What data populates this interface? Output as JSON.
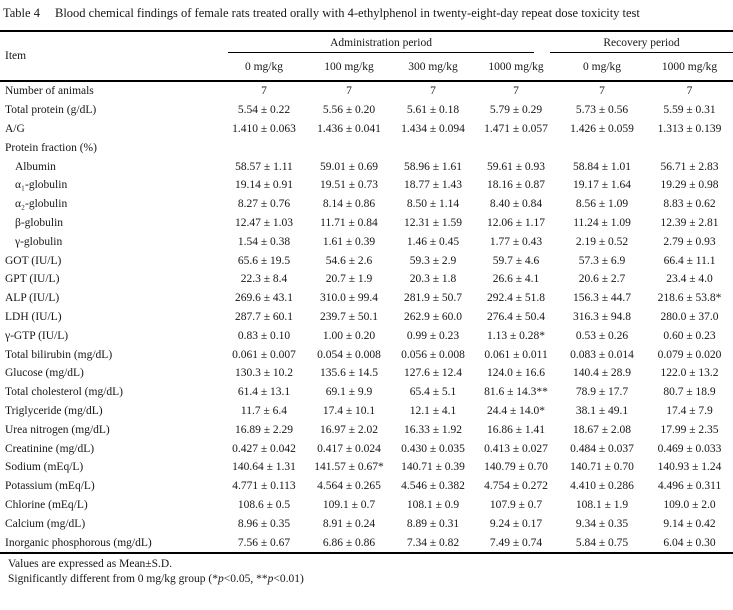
{
  "title": {
    "label": "Table 4",
    "caption": "Blood chemical findings of female rats treated orally with 4-ethylphenol in twenty-eight-day repeat dose toxicity test"
  },
  "table": {
    "item_header": "Item",
    "groups": [
      {
        "label": "Administration period",
        "cols": 4
      },
      {
        "label": "Recovery period",
        "cols": 2
      }
    ],
    "dose_headers": [
      "0 mg/kg",
      "100 mg/kg",
      "300 mg/kg",
      "1000 mg/kg",
      "0 mg/kg",
      "1000 mg/kg"
    ],
    "rows": [
      {
        "label": "Number of animals",
        "indent": false,
        "values": [
          "7",
          "7",
          "7",
          "7",
          "7",
          "7"
        ]
      },
      {
        "label": "Total protein (g/dL)",
        "indent": false,
        "values": [
          "5.54 ± 0.22",
          "5.56 ± 0.20",
          "5.61 ± 0.18",
          "5.79 ± 0.29",
          "5.73 ± 0.56",
          "5.59 ± 0.31"
        ]
      },
      {
        "label": "A/G",
        "indent": false,
        "values": [
          "1.410 ± 0.063",
          "1.436 ± 0.041",
          "1.434 ± 0.094",
          "1.471 ± 0.057",
          "1.426 ± 0.059",
          "1.313 ± 0.139"
        ]
      },
      {
        "label": "Protein fraction (%)",
        "indent": false,
        "values": [
          "",
          "",
          "",
          "",
          "",
          ""
        ]
      },
      {
        "label": "Albumin",
        "indent": true,
        "values": [
          "58.57 ± 1.11",
          "59.01 ± 0.69",
          "58.96 ± 1.61",
          "59.61 ± 0.93",
          "58.84 ± 1.01",
          "56.71 ± 2.83"
        ]
      },
      {
        "label": "α₁-globulin",
        "indent": true,
        "values": [
          "19.14 ± 0.91",
          "19.51 ± 0.73",
          "18.77 ± 1.43",
          "18.16 ± 0.87",
          "19.17 ± 1.64",
          "19.29 ± 0.98"
        ]
      },
      {
        "label": "α₂-globulin",
        "indent": true,
        "values": [
          "8.27 ± 0.76",
          "8.14 ± 0.86",
          "8.50 ± 1.14",
          "8.40 ± 0.84",
          "8.56 ± 1.09",
          "8.83 ± 0.62"
        ]
      },
      {
        "label": "β-globulin",
        "indent": true,
        "values": [
          "12.47 ± 1.03",
          "11.71 ± 0.84",
          "12.31 ± 1.59",
          "12.06 ± 1.17",
          "11.24 ± 1.09",
          "12.39 ± 2.81"
        ]
      },
      {
        "label": "γ-globulin",
        "indent": true,
        "values": [
          "1.54 ± 0.38",
          "1.61 ± 0.39",
          "1.46 ± 0.45",
          "1.77 ± 0.43",
          "2.19 ± 0.52",
          "2.79 ± 0.93"
        ]
      },
      {
        "label": "GOT (IU/L)",
        "indent": false,
        "values": [
          "65.6 ± 19.5",
          "54.6 ± 2.6",
          "59.3 ± 2.9",
          "59.7 ± 4.6",
          "57.3 ± 6.9",
          "66.4 ± 11.1"
        ]
      },
      {
        "label": "GPT (IU/L)",
        "indent": false,
        "values": [
          "22.3 ± 8.4",
          "20.7 ± 1.9",
          "20.3 ± 1.8",
          "26.6 ± 4.1",
          "20.6 ± 2.7",
          "23.4 ± 4.0"
        ]
      },
      {
        "label": "ALP (IU/L)",
        "indent": false,
        "values": [
          "269.6 ± 43.1",
          "310.0 ± 99.4",
          "281.9 ± 50.7",
          "292.4 ± 51.8",
          "156.3 ± 44.7",
          "218.6 ± 53.8*"
        ]
      },
      {
        "label": "LDH (IU/L)",
        "indent": false,
        "values": [
          "287.7 ± 60.1",
          "239.7 ± 50.1",
          "262.9 ± 60.0",
          "276.4 ± 50.4",
          "316.3 ± 94.8",
          "280.0 ± 37.0"
        ]
      },
      {
        "label": "γ-GTP (IU/L)",
        "indent": false,
        "values": [
          "0.83 ± 0.10",
          "1.00 ± 0.20",
          "0.99 ± 0.23",
          "1.13 ± 0.28*",
          "0.53 ± 0.26",
          "0.60 ± 0.23"
        ]
      },
      {
        "label": "Total bilirubin (mg/dL)",
        "indent": false,
        "values": [
          "0.061 ± 0.007",
          "0.054 ± 0.008",
          "0.056 ± 0.008",
          "0.061 ± 0.011",
          "0.083 ± 0.014",
          "0.079 ± 0.020"
        ]
      },
      {
        "label": "Glucose (mg/dL)",
        "indent": false,
        "values": [
          "130.3 ± 10.2",
          "135.6 ± 14.5",
          "127.6 ± 12.4",
          "124.0 ± 16.6",
          "140.4 ± 28.9",
          "122.0 ± 13.2"
        ]
      },
      {
        "label": "Total cholesterol (mg/dL)",
        "indent": false,
        "values": [
          "61.4 ± 13.1",
          "69.1 ± 9.9",
          "65.4 ± 5.1",
          "81.6 ± 14.3**",
          "78.9 ± 17.7",
          "80.7 ± 18.9"
        ]
      },
      {
        "label": "Triglyceride (mg/dL)",
        "indent": false,
        "values": [
          "11.7 ± 6.4",
          "17.4 ± 10.1",
          "12.1 ± 4.1",
          "24.4 ± 14.0*",
          "38.1 ± 49.1",
          "17.4 ± 7.9"
        ]
      },
      {
        "label": "Urea nitrogen (mg/dL)",
        "indent": false,
        "values": [
          "16.89 ± 2.29",
          "16.97 ± 2.02",
          "16.33 ± 1.92",
          "16.86 ± 1.41",
          "18.67 ± 2.08",
          "17.99 ± 2.35"
        ]
      },
      {
        "label": "Creatinine (mg/dL)",
        "indent": false,
        "values": [
          "0.427 ± 0.042",
          "0.417 ± 0.024",
          "0.430 ± 0.035",
          "0.413 ± 0.027",
          "0.484 ± 0.037",
          "0.469 ± 0.033"
        ]
      },
      {
        "label": "Sodium (mEq/L)",
        "indent": false,
        "values": [
          "140.64 ± 1.31",
          "141.57 ± 0.67*",
          "140.71 ± 0.39",
          "140.79 ± 0.70",
          "140.71 ± 0.70",
          "140.93 ± 1.24"
        ]
      },
      {
        "label": "Potassium (mEq/L)",
        "indent": false,
        "values": [
          "4.771 ± 0.113",
          "4.564 ± 0.265",
          "4.546 ± 0.382",
          "4.754 ± 0.272",
          "4.410 ± 0.286",
          "4.496 ± 0.311"
        ]
      },
      {
        "label": "Chlorine (mEq/L)",
        "indent": false,
        "values": [
          "108.6 ± 0.5",
          "109.1 ± 0.7",
          "108.1 ± 0.9",
          "107.9 ± 0.7",
          "108.1 ± 1.9",
          "109.0 ± 2.0"
        ]
      },
      {
        "label": "Calcium (mg/dL)",
        "indent": false,
        "values": [
          "8.96 ± 0.35",
          "8.91 ± 0.24",
          "8.89 ± 0.31",
          "9.24 ± 0.17",
          "9.34 ± 0.35",
          "9.14 ± 0.42"
        ]
      },
      {
        "label": "Inorganic phosphorous (mg/dL)",
        "indent": false,
        "values": [
          "7.56 ± 0.67",
          "6.86 ± 0.86",
          "7.34 ± 0.82",
          "7.49 ± 0.74",
          "5.84 ± 0.75",
          "6.04 ± 0.30"
        ]
      }
    ]
  },
  "footnotes": {
    "note1": "Values are expressed as Mean±S.D.",
    "note2_parts": [
      "Significantly different from 0 mg/kg group (*",
      "p",
      "<0.05, **",
      "p",
      "<0.01)"
    ]
  }
}
